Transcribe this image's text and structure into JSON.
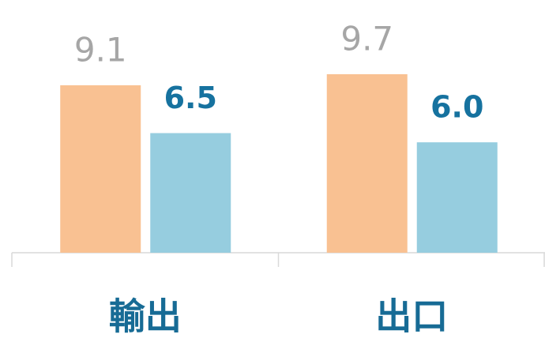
{
  "chart_data": {
    "type": "bar",
    "categories": [
      "輸出",
      "出口"
    ],
    "series": [
      {
        "color": "#f9c192",
        "label_color": "#a6a6a6",
        "values": [
          9.1,
          9.7
        ],
        "value_labels": [
          "9.1",
          "9.7"
        ]
      },
      {
        "color": "#96cddf",
        "label_color": "#16729f",
        "values": [
          6.5,
          6
        ],
        "value_labels": [
          "6.5",
          "6.0"
        ]
      }
    ],
    "ylim": [
      0,
      10
    ]
  }
}
